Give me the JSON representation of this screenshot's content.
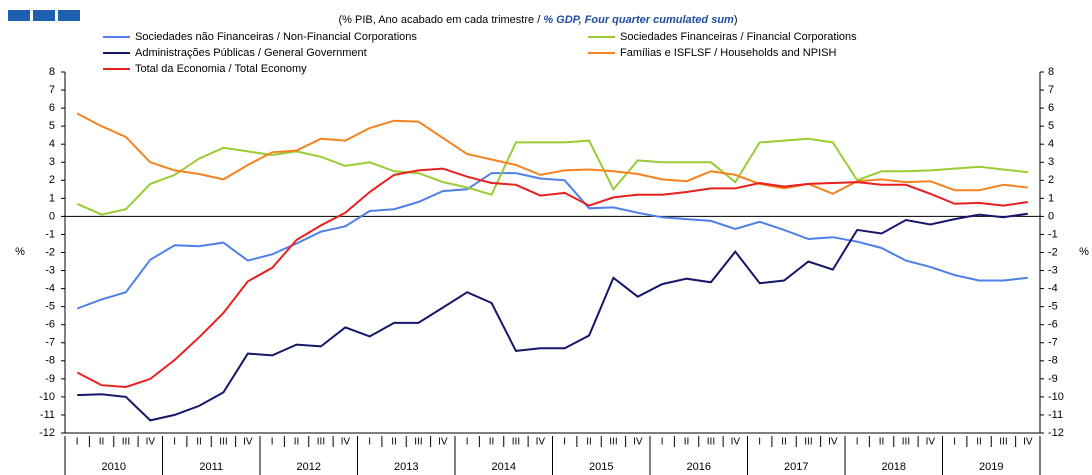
{
  "chart_data": {
    "type": "line",
    "title": {
      "pt": "(% PIB, Ano acabado em cada trimestre / ",
      "en": "% GDP, Four quarter cumulated sum",
      "close": ")"
    },
    "ylabel": "%",
    "y2label": "%",
    "categories": [
      "I",
      "II",
      "III",
      "IV",
      "I",
      "II",
      "III",
      "IV",
      "I",
      "II",
      "III",
      "IV",
      "I",
      "II",
      "III",
      "IV",
      "I",
      "II",
      "III",
      "IV",
      "I",
      "II",
      "III",
      "IV",
      "I",
      "II",
      "III",
      "IV",
      "I",
      "II",
      "III",
      "IV",
      "I",
      "II",
      "III",
      "IV",
      "I",
      "II",
      "III",
      "IV"
    ],
    "years": [
      "2010",
      "2011",
      "2012",
      "2013",
      "2014",
      "2015",
      "2016",
      "2017",
      "2018",
      "2019"
    ],
    "ylim": [
      -12,
      8
    ],
    "yticks": [
      -12,
      -11,
      -10,
      -9,
      -8,
      -7,
      -6,
      -5,
      -4,
      -3,
      -2,
      -1,
      0,
      1,
      2,
      3,
      4,
      5,
      6,
      7,
      8
    ],
    "series": [
      {
        "name": "Sociedades não Financeiras / Non-Financial Corporations",
        "color": "#4f7fe8",
        "values": [
          -5.1,
          -4.6,
          -4.2,
          -2.4,
          -1.6,
          -1.65,
          -1.45,
          -2.45,
          -2.1,
          -1.5,
          -0.85,
          -0.55,
          0.3,
          0.4,
          0.8,
          1.4,
          1.5,
          2.4,
          2.4,
          2.1,
          2.0,
          0.45,
          0.5,
          0.2,
          -0.05,
          -0.15,
          -0.25,
          -0.7,
          -0.3,
          -0.75,
          -1.25,
          -1.15,
          -1.4,
          -1.75,
          -2.45,
          -2.8,
          -3.25,
          -3.55,
          -3.55,
          -3.4
        ]
      },
      {
        "name": "Sociedades Financeiras / Financial Corporations",
        "color": "#99cc33",
        "values": [
          0.7,
          0.1,
          0.4,
          1.8,
          2.3,
          3.2,
          3.8,
          3.6,
          3.4,
          3.6,
          3.3,
          2.8,
          3.0,
          2.5,
          2.4,
          1.9,
          1.6,
          1.2,
          4.1,
          4.1,
          4.1,
          4.2,
          1.5,
          3.1,
          3.0,
          3.0,
          3.0,
          1.9,
          4.1,
          4.2,
          4.3,
          4.1,
          2.0,
          2.5,
          2.5,
          2.55,
          2.65,
          2.75,
          2.6,
          2.45
        ]
      },
      {
        "name": "Administrações Públicas / General Government",
        "color": "#16166b",
        "values": [
          -9.9,
          -9.85,
          -10.0,
          -11.3,
          -11.0,
          -10.5,
          -9.75,
          -7.6,
          -7.7,
          -7.1,
          -7.2,
          -6.15,
          -6.65,
          -5.9,
          -5.9,
          -5.05,
          -4.2,
          -4.8,
          -7.45,
          -7.3,
          -7.3,
          -6.6,
          -3.4,
          -4.45,
          -3.75,
          -3.45,
          -3.65,
          -1.95,
          -3.7,
          -3.55,
          -2.5,
          -2.95,
          -0.75,
          -0.95,
          -0.2,
          -0.45,
          -0.15,
          0.1,
          -0.05,
          0.15
        ]
      },
      {
        "name": "Famílias e ISFLSF / Households and NPISH",
        "color": "#f58220",
        "values": [
          5.7,
          5.0,
          4.4,
          3.0,
          2.55,
          2.35,
          2.05,
          2.85,
          3.55,
          3.65,
          4.3,
          4.2,
          4.9,
          5.3,
          5.25,
          4.35,
          3.45,
          3.15,
          2.85,
          2.3,
          2.55,
          2.6,
          2.5,
          2.35,
          2.05,
          1.95,
          2.5,
          2.3,
          1.8,
          1.55,
          1.8,
          1.25,
          1.95,
          2.05,
          1.9,
          1.95,
          1.45,
          1.45,
          1.75,
          1.6
        ]
      },
      {
        "name": "Total da Economia / Total Economy",
        "color": "#e8201e",
        "values": [
          -8.65,
          -9.35,
          -9.45,
          -9.0,
          -7.95,
          -6.7,
          -5.35,
          -3.6,
          -2.85,
          -1.3,
          -0.5,
          0.2,
          1.35,
          2.3,
          2.55,
          2.65,
          2.2,
          1.85,
          1.75,
          1.15,
          1.3,
          0.6,
          1.05,
          1.2,
          1.2,
          1.35,
          1.55,
          1.55,
          1.85,
          1.65,
          1.8,
          1.85,
          1.9,
          1.75,
          1.75,
          1.25,
          0.7,
          0.75,
          0.6,
          0.8
        ]
      }
    ]
  }
}
